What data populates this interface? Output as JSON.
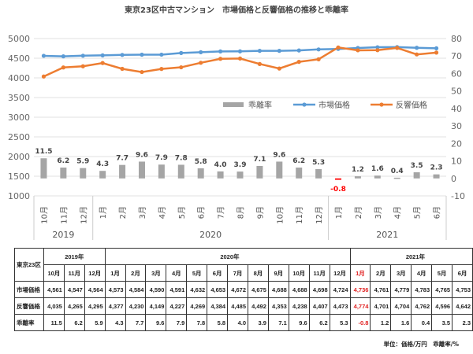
{
  "chart_data": {
    "type": "bar+line",
    "title": "東京23区中古マンション　市場価格と反響価格の推移と乖離率",
    "months": [
      "10月",
      "11月",
      "12月",
      "1月",
      "2月",
      "3月",
      "4月",
      "5月",
      "6月",
      "7月",
      "8月",
      "9月",
      "10月",
      "11月",
      "12月",
      "1月",
      "2月",
      "3月",
      "4月",
      "5月",
      "6月"
    ],
    "years": [
      {
        "label": "2019",
        "count": 3
      },
      {
        "label": "2020",
        "count": 12
      },
      {
        "label": "2021",
        "count": 6
      }
    ],
    "left_axis": {
      "ylim": [
        1000,
        5000
      ],
      "ticks": [
        "1000",
        "1500",
        "2000",
        "2500",
        "3000",
        "3500",
        "4000",
        "4500",
        "5000"
      ]
    },
    "right_axis": {
      "ylim": [
        -10,
        80
      ],
      "ticks": [
        "-10",
        "0",
        "10",
        "20",
        "30",
        "40",
        "50",
        "60",
        "70",
        "80"
      ]
    },
    "legend_position": "center",
    "series": [
      {
        "name": "乖離率",
        "type": "bar",
        "axis": "right",
        "color": "#a5a5a5",
        "values": [
          11.5,
          6.2,
          5.9,
          4.3,
          7.7,
          9.6,
          7.9,
          7.8,
          5.8,
          4.0,
          3.9,
          7.1,
          9.6,
          6.2,
          5.3,
          -0.8,
          1.2,
          1.6,
          0.4,
          3.5,
          2.3
        ]
      },
      {
        "name": "市場価格",
        "type": "line",
        "axis": "left",
        "color": "#5b9bd5",
        "values": [
          4561,
          4547,
          4564,
          4573,
          4584,
          4590,
          4591,
          4632,
          4653,
          4672,
          4675,
          4688,
          4688,
          4698,
          4724,
          4736,
          4761,
          4779,
          4783,
          4765,
          4753
        ]
      },
      {
        "name": "反響価格",
        "type": "line",
        "axis": "left",
        "color": "#ed7d31",
        "values": [
          4035,
          4265,
          4295,
          4377,
          4230,
          4149,
          4227,
          4269,
          4384,
          4485,
          4492,
          4353,
          4238,
          4407,
          4473,
          4774,
          4701,
          4704,
          4762,
          4596,
          4642
        ]
      }
    ],
    "negative_label_color": "#ff0000"
  },
  "table": {
    "corner": "東京23区",
    "years": [
      "2019年",
      "2020年",
      "2021年"
    ],
    "row_labels": [
      "市場価格",
      "反響価格",
      "乖離率"
    ],
    "market": [
      "4,561",
      "4,547",
      "4,564",
      "4,573",
      "4,584",
      "4,590",
      "4,591",
      "4,632",
      "4,653",
      "4,672",
      "4,675",
      "4,688",
      "4,688",
      "4,698",
      "4,724",
      "4,736",
      "4,761",
      "4,779",
      "4,783",
      "4,765",
      "4,753"
    ],
    "response": [
      "4,035",
      "4,265",
      "4,295",
      "4,377",
      "4,230",
      "4,149",
      "4,227",
      "4,269",
      "4,384",
      "4,485",
      "4,492",
      "4,353",
      "4,238",
      "4,407",
      "4,473",
      "4,774",
      "4,701",
      "4,704",
      "4,762",
      "4,596",
      "4,642"
    ],
    "rate": [
      "11.5",
      "6.2",
      "5.9",
      "4.3",
      "7.7",
      "9.6",
      "7.9",
      "7.8",
      "5.8",
      "4.0",
      "3.9",
      "7.1",
      "9.6",
      "6.2",
      "5.3",
      "-0.8",
      "1.2",
      "1.6",
      "0.4",
      "3.5",
      "2.3"
    ],
    "highlight_color": "#e02020",
    "unit_note": "単位：価格/万円　乖離率/%"
  }
}
